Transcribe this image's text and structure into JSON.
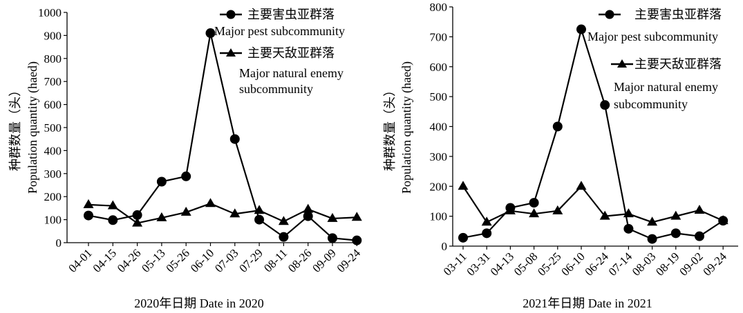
{
  "chart_data": [
    {
      "type": "line",
      "x": [
        "04-01",
        "04-15",
        "04-26",
        "05-13",
        "05-26",
        "06-10",
        "07-03",
        "07-29",
        "08-11",
        "08-26",
        "09-09",
        "09-24"
      ],
      "xlabel": "2020年日期 Date in 2020",
      "ylabel_cn": "种群数量（头）",
      "ylabel_en": "Population quantity (haed)",
      "ylim": [
        0,
        1000
      ],
      "yticks": [
        0,
        100,
        200,
        300,
        400,
        500,
        600,
        700,
        800,
        900,
        1000
      ],
      "series": [
        {
          "name": "主要害虫亚群落",
          "name_en": "Major pest subcommunity",
          "marker": "circle",
          "values": [
            118,
            98,
            120,
            265,
            288,
            910,
            450,
            100,
            25,
            115,
            20,
            10
          ]
        },
        {
          "name": "主要天敌亚群落",
          "name_en_line1": "Major natural enemy",
          "name_en_line2": "subcommunity",
          "marker": "triangle",
          "values": [
            165,
            160,
            85,
            108,
            132,
            170,
            125,
            140,
            92,
            145,
            105,
            110
          ]
        }
      ]
    },
    {
      "type": "line",
      "x": [
        "03-11",
        "03-31",
        "04-13",
        "05-08",
        "05-25",
        "06-10",
        "06-24",
        "07-14",
        "08-03",
        "08-19",
        "09-02",
        "09-24"
      ],
      "xlabel": "2021年日期 Date in 2021",
      "ylabel_cn": "种群数量（头）",
      "ylabel_en": "Population quantity (haed)",
      "ylim": [
        0,
        800
      ],
      "yticks": [
        0,
        100,
        200,
        300,
        400,
        500,
        600,
        700,
        800
      ],
      "series": [
        {
          "name": "主要害虫亚群落",
          "name_en": "Major pest subcommunity",
          "marker": "circle",
          "values": [
            28,
            43,
            128,
            145,
            400,
            725,
            472,
            58,
            24,
            43,
            33,
            85
          ]
        },
        {
          "name": "主要天敌亚群落",
          "name_en_line1": "Major natural enemy",
          "name_en_line2": "subcommunity",
          "marker": "triangle",
          "values": [
            200,
            80,
            118,
            108,
            118,
            200,
            100,
            108,
            80,
            100,
            120,
            85
          ]
        }
      ]
    }
  ]
}
